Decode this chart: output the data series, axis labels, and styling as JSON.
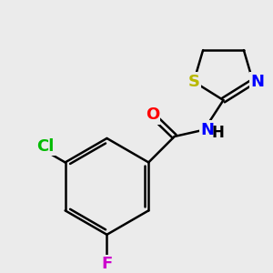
{
  "background_color": "#ebebeb",
  "atom_colors": {
    "O": "#ff0000",
    "N": "#0000ff",
    "S": "#b8b800",
    "Cl": "#00bb00",
    "F": "#cc00cc",
    "C": "#000000",
    "H": "#000000"
  },
  "bond_width": 1.8,
  "font_size": 13,
  "figsize": [
    3.0,
    3.0
  ],
  "dpi": 100
}
